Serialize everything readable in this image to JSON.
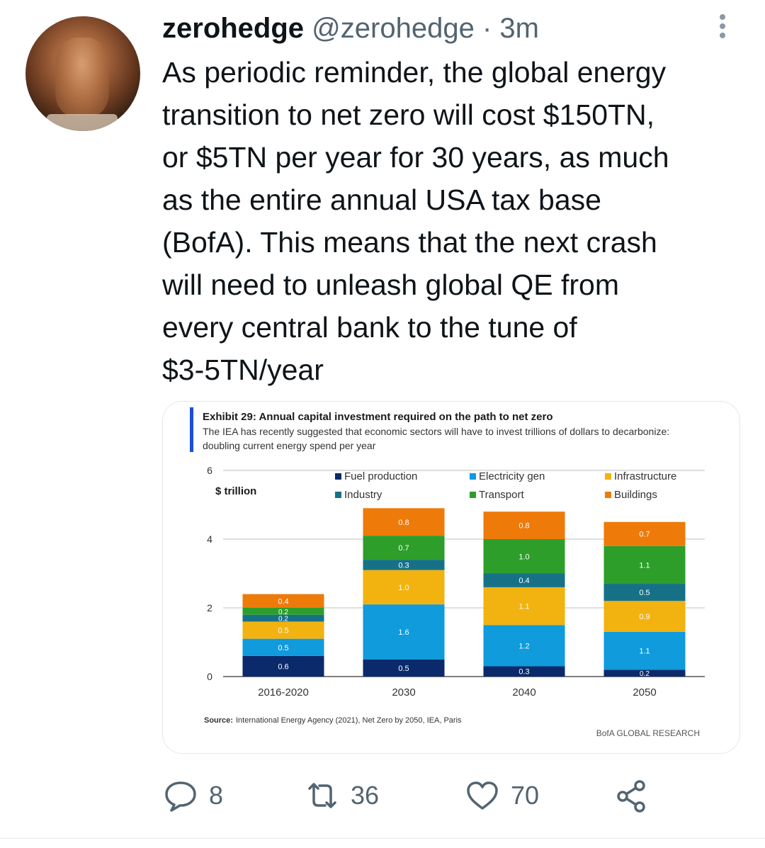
{
  "tweet": {
    "display_name": "zerohedge",
    "handle": "@zerohedge",
    "separator": " · ",
    "time": "3m",
    "text": "As periodic reminder, the global energy\ntransition to net zero will cost $150TN,\nor $5TN per year for 30 years, as much\nas the entire annual USA tax base\n(BofA). This means that the next crash\nwill need to unleash global QE from\nevery central bank to the tune of\n$3-5TN/year",
    "avatar_icon": "profile-photo-avatar",
    "menu_icon": "more-vertical-icon"
  },
  "actions": {
    "reply": {
      "icon": "reply-bubble-icon",
      "count": "8"
    },
    "retweet": {
      "icon": "retweet-icon",
      "count": "36"
    },
    "like": {
      "icon": "heart-icon",
      "count": "70"
    },
    "share": {
      "icon": "share-nodes-icon"
    }
  },
  "chart_data": {
    "type": "bar",
    "stacked": true,
    "title": "Exhibit 29: Annual capital investment required on the path to net zero",
    "subtitle_line1": "The IEA has recently suggested that economic sectors will have to invest trillions of dollars to decarbonize:",
    "subtitle_line2": "doubling current energy spend per year",
    "ylabel": "$ trillion",
    "ylim": [
      0,
      6
    ],
    "yticks": [
      "0",
      "2",
      "4",
      "6"
    ],
    "categories": [
      "2016-2020",
      "2030",
      "2040",
      "2050"
    ],
    "series": [
      {
        "name": "Fuel production",
        "color": "#0b2a6b",
        "values": [
          0.6,
          0.5,
          0.3,
          0.2
        ],
        "labels": [
          "0.6",
          "0.5",
          "0.3",
          "0.2"
        ]
      },
      {
        "name": "Electricity gen",
        "color": "#0f9bdc",
        "values": [
          0.5,
          1.6,
          1.2,
          1.1
        ],
        "labels": [
          "0.5",
          "1.6",
          "1.2",
          "1.1"
        ]
      },
      {
        "name": "Infrastructure",
        "color": "#f2b20f",
        "values": [
          0.5,
          1.0,
          1.1,
          0.9
        ],
        "labels": [
          "0.5",
          "1.0",
          "1.1",
          "0.9"
        ]
      },
      {
        "name": "Industry",
        "color": "#167187",
        "values": [
          0.2,
          0.3,
          0.4,
          0.5
        ],
        "labels": [
          "0.2",
          "0.3",
          "0.4",
          "0.5"
        ]
      },
      {
        "name": "Transport",
        "color": "#2e9e2a",
        "values": [
          0.2,
          0.7,
          1.0,
          1.1
        ],
        "labels": [
          "0.2",
          "0.7",
          "1.0",
          "1.1"
        ]
      },
      {
        "name": "Buildings",
        "color": "#ee7a0a",
        "values": [
          0.4,
          0.8,
          0.8,
          0.7
        ],
        "labels": [
          "0.4",
          "0.8",
          "0.8",
          "0.7"
        ]
      }
    ],
    "legend_order": [
      "Fuel production",
      "Electricity gen",
      "Infrastructure",
      "Industry",
      "Transport",
      "Buildings"
    ],
    "legend_placement": "top",
    "source": "Source: International Energy Agency (2021), Net Zero by 2050, IEA, Paris",
    "source_label": "Source:",
    "source_text": "International Energy Agency (2021), Net Zero by 2050, IEA, Paris",
    "brand": "BofA GLOBAL RESEARCH"
  }
}
